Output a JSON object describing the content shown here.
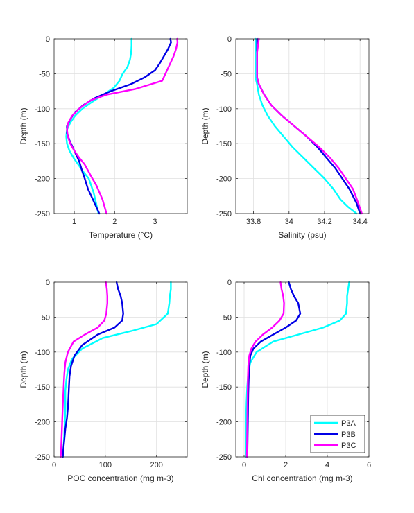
{
  "chart_data": [
    {
      "type": "line",
      "xlabel": "Temperature (°C)",
      "ylabel": "Depth (m)",
      "xlim": [
        0.5,
        3.8
      ],
      "ylim": [
        -250,
        0
      ],
      "xticks": [
        1,
        2,
        3
      ],
      "yticks": [
        0,
        -50,
        -100,
        -150,
        -200,
        -250
      ],
      "grid": true,
      "series": [
        {
          "name": "P3A",
          "color": "#00ffff",
          "x": [
            2.42,
            2.42,
            2.41,
            2.38,
            2.32,
            2.2,
            2.12,
            1.98,
            1.72,
            1.45,
            1.2,
            1.02,
            0.9,
            0.82,
            0.8,
            0.82,
            0.88,
            0.98,
            1.1,
            1.22,
            1.36,
            1.48,
            1.6
          ],
          "y": [
            0,
            -10,
            -20,
            -30,
            -40,
            -50,
            -60,
            -70,
            -80,
            -90,
            -100,
            -110,
            -120,
            -130,
            -140,
            -150,
            -160,
            -170,
            -180,
            -190,
            -200,
            -220,
            -250
          ]
        },
        {
          "name": "P3B",
          "color": "#0000e6",
          "x": [
            3.38,
            3.4,
            3.32,
            3.22,
            3.12,
            3.0,
            2.75,
            2.4,
            1.9,
            1.5,
            1.22,
            1.02,
            0.9,
            0.82,
            0.82,
            0.88,
            1.0,
            1.12,
            1.2,
            1.26,
            1.34,
            1.46,
            1.62
          ],
          "y": [
            0,
            -5,
            -15,
            -25,
            -35,
            -45,
            -55,
            -65,
            -75,
            -85,
            -95,
            -105,
            -115,
            -125,
            -135,
            -145,
            -160,
            -175,
            -190,
            -200,
            -215,
            -230,
            -250
          ]
        },
        {
          "name": "P3C",
          "color": "#ff00ff",
          "x": [
            3.55,
            3.56,
            3.52,
            3.46,
            3.38,
            3.3,
            3.18,
            2.5,
            1.8,
            1.4,
            1.12,
            0.95,
            0.85,
            0.82,
            0.84,
            0.9,
            1.0,
            1.12,
            1.26,
            1.4,
            1.55,
            1.7,
            1.8
          ],
          "y": [
            0,
            -5,
            -15,
            -25,
            -35,
            -45,
            -60,
            -72,
            -80,
            -88,
            -100,
            -110,
            -120,
            -130,
            -140,
            -150,
            -160,
            -170,
            -180,
            -195,
            -210,
            -230,
            -250
          ]
        }
      ]
    },
    {
      "type": "line",
      "xlabel": "Salinity (psu)",
      "ylabel": "Depth (m)",
      "xlim": [
        33.7,
        34.45
      ],
      "ylim": [
        -250,
        0
      ],
      "xticks": [
        33.8,
        34,
        34.2,
        34.4
      ],
      "yticks": [
        0,
        -50,
        -100,
        -150,
        -200,
        -250
      ],
      "grid": true,
      "series": [
        {
          "name": "P3A",
          "color": "#00ffff",
          "x": [
            33.81,
            33.81,
            33.81,
            33.81,
            33.82,
            33.83,
            33.85,
            33.88,
            33.92,
            33.97,
            34.02,
            34.08,
            34.14,
            34.2,
            34.25,
            34.29,
            34.33,
            34.38
          ],
          "y": [
            0,
            -20,
            -40,
            -55,
            -65,
            -80,
            -95,
            -110,
            -125,
            -140,
            -155,
            -170,
            -185,
            -200,
            -215,
            -230,
            -240,
            -250
          ]
        },
        {
          "name": "P3B",
          "color": "#0000e6",
          "x": [
            33.82,
            33.82,
            33.82,
            33.82,
            33.83,
            33.86,
            33.9,
            33.96,
            34.03,
            34.1,
            34.16,
            34.21,
            34.26,
            34.3,
            34.34,
            34.38,
            34.4
          ],
          "y": [
            0,
            -20,
            -40,
            -55,
            -65,
            -80,
            -95,
            -110,
            -125,
            -140,
            -155,
            -170,
            -185,
            -200,
            -215,
            -235,
            -250
          ]
        },
        {
          "name": "P3C",
          "color": "#ff00ff",
          "x": [
            33.83,
            33.82,
            33.82,
            33.82,
            33.83,
            33.86,
            33.9,
            33.96,
            34.03,
            34.1,
            34.17,
            34.23,
            34.28,
            34.32,
            34.36,
            34.39,
            34.41
          ],
          "y": [
            0,
            -20,
            -40,
            -55,
            -65,
            -80,
            -95,
            -110,
            -125,
            -140,
            -155,
            -170,
            -185,
            -200,
            -215,
            -235,
            -250
          ]
        }
      ]
    },
    {
      "type": "line",
      "xlabel": "POC concentration (mg m-3)",
      "ylabel": "Depth (m)",
      "xlim": [
        0,
        260
      ],
      "ylim": [
        -250,
        0
      ],
      "xticks": [
        0,
        100,
        200
      ],
      "yticks": [
        0,
        -50,
        -100,
        -150,
        -200,
        -250
      ],
      "grid": true,
      "series": [
        {
          "name": "P3A",
          "color": "#00ffff",
          "x": [
            228,
            228,
            226,
            225,
            222,
            200,
            150,
            95,
            55,
            35,
            27,
            24,
            22,
            22,
            22,
            21,
            20,
            19,
            18,
            17
          ],
          "y": [
            0,
            -10,
            -20,
            -30,
            -45,
            -60,
            -70,
            -80,
            -95,
            -110,
            -125,
            -140,
            -155,
            -170,
            -185,
            -200,
            -215,
            -230,
            -240,
            -250
          ]
        },
        {
          "name": "P3B",
          "color": "#0000e6",
          "x": [
            122,
            125,
            130,
            133,
            135,
            133,
            118,
            85,
            55,
            40,
            33,
            30,
            29,
            28,
            27,
            25,
            22,
            20,
            18,
            17
          ],
          "y": [
            0,
            -10,
            -20,
            -30,
            -45,
            -55,
            -65,
            -75,
            -90,
            -105,
            -120,
            -135,
            -150,
            -165,
            -180,
            -195,
            -210,
            -225,
            -240,
            -250
          ]
        },
        {
          "name": "P3C",
          "color": "#ff00ff",
          "x": [
            101,
            103,
            104,
            104,
            102,
            98,
            85,
            60,
            38,
            27,
            22,
            20,
            19,
            18,
            17,
            16,
            15,
            14,
            13
          ],
          "y": [
            0,
            -10,
            -20,
            -30,
            -45,
            -55,
            -65,
            -75,
            -85,
            -100,
            -115,
            -130,
            -145,
            -160,
            -175,
            -195,
            -215,
            -235,
            -250
          ]
        }
      ]
    },
    {
      "type": "line",
      "xlabel": "Chl concentration (mg m-3)",
      "ylabel": "Depth (m)",
      "xlim": [
        -0.4,
        6
      ],
      "ylim": [
        -250,
        0
      ],
      "xticks": [
        0,
        2,
        4,
        6
      ],
      "yticks": [
        0,
        -50,
        -100,
        -150,
        -200,
        -250
      ],
      "grid": true,
      "legend": {
        "location": "bottom-right",
        "entries": [
          "P3A",
          "P3B",
          "P3C"
        ]
      },
      "series": [
        {
          "name": "P3A",
          "color": "#00ffff",
          "x": [
            5.05,
            5.0,
            4.95,
            4.95,
            4.9,
            4.6,
            3.8,
            2.6,
            1.4,
            0.6,
            0.3,
            0.2,
            0.15,
            0.12,
            0.1,
            0.1,
            0.09,
            0.08,
            0.08
          ],
          "y": [
            0,
            -10,
            -20,
            -30,
            -45,
            -55,
            -65,
            -75,
            -85,
            -100,
            -115,
            -130,
            -150,
            -170,
            -190,
            -210,
            -230,
            -245,
            -250
          ]
        },
        {
          "name": "P3B",
          "color": "#0000e6",
          "x": [
            2.15,
            2.25,
            2.4,
            2.6,
            2.7,
            2.5,
            2.0,
            1.4,
            0.8,
            0.45,
            0.3,
            0.25,
            0.22,
            0.2,
            0.19,
            0.18,
            0.17,
            0.16,
            0.15
          ],
          "y": [
            0,
            -10,
            -20,
            -30,
            -45,
            -55,
            -65,
            -75,
            -85,
            -95,
            -105,
            -120,
            -140,
            -160,
            -180,
            -200,
            -220,
            -240,
            -250
          ]
        },
        {
          "name": "P3C",
          "color": "#ff00ff",
          "x": [
            1.75,
            1.8,
            1.88,
            1.92,
            1.9,
            1.7,
            1.35,
            0.9,
            0.55,
            0.35,
            0.25,
            0.2,
            0.18,
            0.17,
            0.16,
            0.15,
            0.14,
            0.13
          ],
          "y": [
            0,
            -10,
            -20,
            -30,
            -45,
            -55,
            -65,
            -75,
            -85,
            -95,
            -105,
            -120,
            -140,
            -165,
            -190,
            -215,
            -240,
            -250
          ]
        }
      ]
    }
  ]
}
